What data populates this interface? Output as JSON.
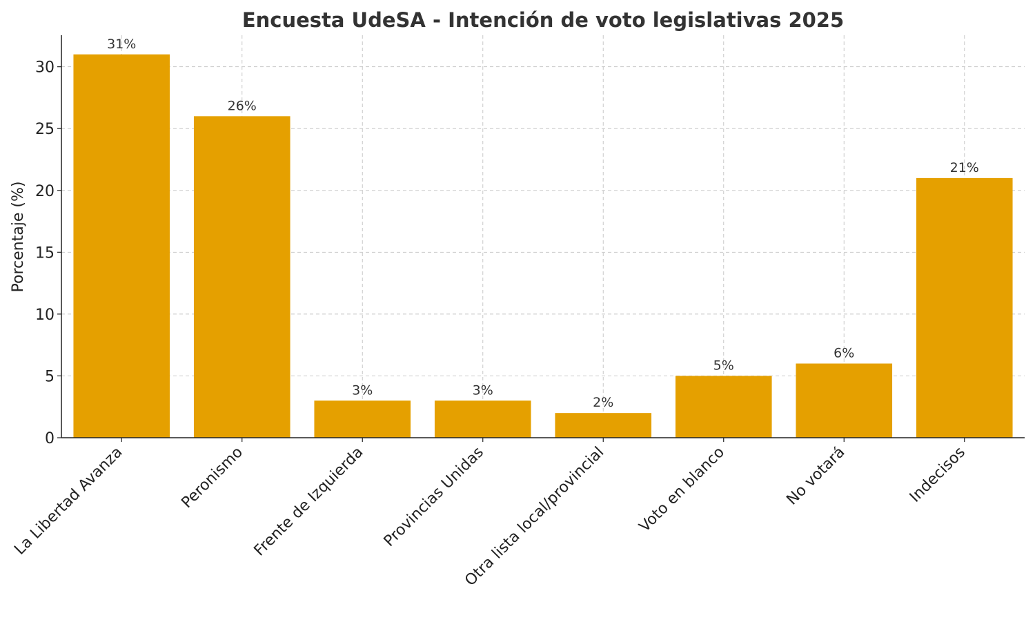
{
  "chart_data": {
    "type": "bar",
    "title": "Encuesta UdeSA - Intención de voto legislativas 2025",
    "xlabel": "",
    "ylabel": "Porcentaje (%)",
    "categories": [
      "La Libertad Avanza",
      "Peronismo",
      "Frente de Izquierda",
      "Provincias Unidas",
      "Otra lista local/provincial",
      "Voto en blanco",
      "No votará",
      "Indecisos"
    ],
    "values": [
      31,
      26,
      3,
      3,
      2,
      5,
      6,
      21
    ],
    "data_labels": [
      "31%",
      "26%",
      "3%",
      "3%",
      "2%",
      "5%",
      "6%",
      "21%"
    ],
    "ylim": [
      0,
      32.55
    ],
    "yticks": [
      0,
      5,
      10,
      15,
      20,
      25,
      30
    ],
    "grid": true,
    "bar_color": "#e5a000"
  }
}
